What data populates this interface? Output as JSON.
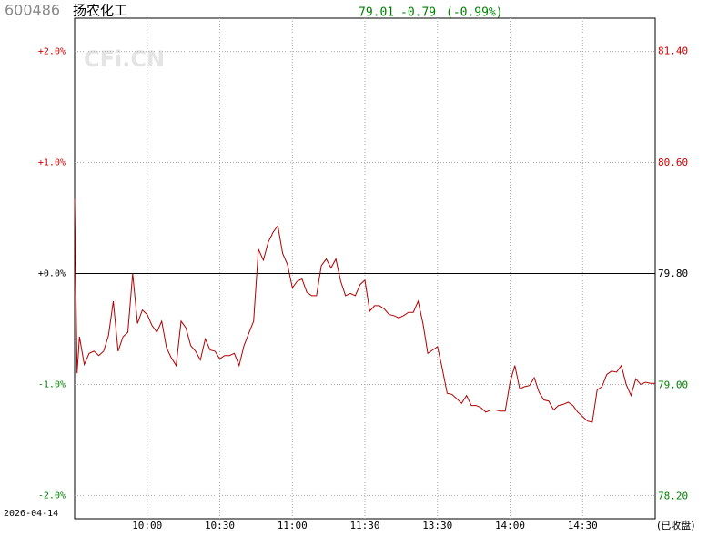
{
  "header": {
    "code": "600486",
    "name": "扬农化工",
    "price": "79.01",
    "change": "-0.79",
    "change_pct": "(-0.99%)",
    "date": "2026-04-14",
    "status": "(已收盘)",
    "watermark": "CFi.CN"
  },
  "chart_data": {
    "type": "line",
    "color": "#b00000",
    "up_color": "#cc0000",
    "down_color": "#008000",
    "zero_color": "#000000",
    "grid": true,
    "x": [
      0,
      1,
      2,
      4,
      6,
      8,
      10,
      12,
      14,
      16,
      18,
      20,
      22,
      24,
      26,
      28,
      30,
      32,
      34,
      36,
      38,
      40,
      42,
      44,
      46,
      48,
      50,
      52,
      54,
      56,
      58,
      60,
      62,
      64,
      66,
      68,
      70,
      72,
      74,
      76,
      78,
      80,
      82,
      84,
      86,
      88,
      90,
      92,
      94,
      96,
      98,
      100,
      102,
      104,
      106,
      108,
      110,
      112,
      114,
      116,
      118,
      120,
      122,
      124,
      126,
      128,
      130,
      132,
      134,
      136,
      138,
      140,
      142,
      144,
      146,
      148,
      150,
      152,
      154,
      156,
      158,
      160,
      162,
      164,
      166,
      168,
      170,
      172,
      174,
      176,
      178,
      180,
      182,
      184,
      186,
      188,
      190,
      192,
      194,
      196,
      198,
      200,
      202,
      204,
      206,
      208,
      210,
      212,
      214,
      216,
      218,
      220,
      222,
      224,
      226,
      228,
      230,
      232,
      234,
      236,
      238,
      240
    ],
    "values": [
      0.67,
      -0.9,
      -0.57,
      -0.82,
      -0.72,
      -0.7,
      -0.74,
      -0.7,
      -0.56,
      -0.25,
      -0.7,
      -0.57,
      -0.53,
      0,
      -0.45,
      -0.33,
      -0.37,
      -0.47,
      -0.53,
      -0.43,
      -0.67,
      -0.76,
      -0.83,
      -0.43,
      -0.49,
      -0.65,
      -0.7,
      -0.78,
      -0.59,
      -0.69,
      -0.7,
      -0.77,
      -0.74,
      -0.74,
      -0.72,
      -0.83,
      -0.65,
      -0.54,
      -0.43,
      0.22,
      0.12,
      0.28,
      0.37,
      0.43,
      0.18,
      0.08,
      -0.13,
      -0.07,
      -0.05,
      -0.17,
      -0.2,
      -0.2,
      0.07,
      0.13,
      0.05,
      0.13,
      -0.07,
      -0.2,
      -0.18,
      -0.2,
      -0.1,
      -0.06,
      -0.34,
      -0.29,
      -0.29,
      -0.32,
      -0.37,
      -0.38,
      -0.4,
      -0.38,
      -0.35,
      -0.35,
      -0.25,
      -0.45,
      -0.72,
      -0.69,
      -0.66,
      -0.86,
      -1.08,
      -1.09,
      -1.13,
      -1.17,
      -1.1,
      -1.19,
      -1.19,
      -1.21,
      -1.25,
      -1.23,
      -1.23,
      -1.24,
      -1.24,
      -0.98,
      -0.83,
      -1.04,
      -1.02,
      -1.01,
      -0.94,
      -1.07,
      -1.14,
      -1.15,
      -1.23,
      -1.19,
      -1.18,
      -1.16,
      -1.19,
      -1.25,
      -1.29,
      -1.33,
      -1.34,
      -1.05,
      -1.02,
      -0.91,
      -0.88,
      -0.89,
      -0.83,
      -1.0,
      -1.1,
      -0.95,
      -1.0,
      -0.98,
      -0.99,
      -0.99
    ],
    "xlim": [
      0,
      240
    ],
    "xticks": [
      {
        "value": 30,
        "label": "10:00"
      },
      {
        "value": 60,
        "label": "10:30"
      },
      {
        "value": 90,
        "label": "11:00"
      },
      {
        "value": 120,
        "label": "11:30"
      },
      {
        "value": 150,
        "label": "13:30"
      },
      {
        "value": 180,
        "label": "14:00"
      },
      {
        "value": 210,
        "label": "14:30"
      }
    ],
    "ylim": [
      -2.21,
      2.3
    ],
    "yticks": [
      {
        "value": 2,
        "label": "+2.0%"
      },
      {
        "value": 1,
        "label": "+1.0%"
      },
      {
        "value": 0,
        "label": "+0.0%"
      },
      {
        "value": -1,
        "label": "-1.0%"
      },
      {
        "value": -2,
        "label": "-2.0%"
      }
    ],
    "y2lim": [
      78.04,
      81.64
    ],
    "y2ref": 79.8,
    "y2ticks": [
      {
        "value": 81.4,
        "label": "81.40"
      },
      {
        "value": 80.6,
        "label": "80.60"
      },
      {
        "value": 79.8,
        "label": "79.80"
      },
      {
        "value": 79.0,
        "label": "79.00"
      },
      {
        "value": 78.2,
        "label": "78.20"
      }
    ]
  }
}
